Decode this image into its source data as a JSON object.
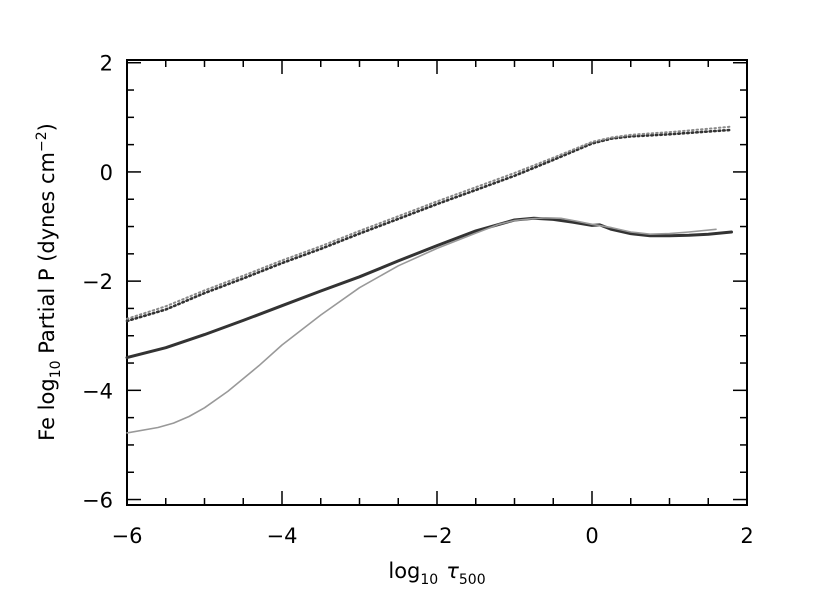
{
  "chart_data": {
    "type": "line",
    "title": "",
    "xlabel": {
      "prefix": "log",
      "sub": "10",
      "symbol": "τ",
      "symbol_sub": "500"
    },
    "ylabel": {
      "prefix": "Fe log",
      "sub": "10",
      "mid": " Partial P (dynes cm",
      "sup": "−2",
      "suffix": ")"
    },
    "xlim": [
      -6,
      2
    ],
    "ylim": [
      -6.1,
      2.05
    ],
    "xticks": [
      -6,
      -4,
      -2,
      0,
      2
    ],
    "xtick_labels": [
      "−6",
      "−4",
      "−2",
      "0",
      "2"
    ],
    "yticks": [
      -6,
      -4,
      -2,
      0,
      2
    ],
    "ytick_labels": [
      "−6",
      "−4",
      "−2",
      "0",
      "2"
    ],
    "x_minor_step": 0.5,
    "y_minor_step": 0.5,
    "grid": false,
    "series": [
      {
        "style": "solid-thick",
        "color": "#333333",
        "x": [
          -6,
          -5.5,
          -5,
          -4.5,
          -4,
          -3.5,
          -3,
          -2.5,
          -2,
          -1.5,
          -1,
          -0.75,
          -0.5,
          -0.25,
          0,
          0.1,
          0.25,
          0.5,
          0.75,
          1,
          1.25,
          1.5,
          1.8
        ],
        "y": [
          -3.4,
          -3.22,
          -2.98,
          -2.72,
          -2.45,
          -2.18,
          -1.92,
          -1.63,
          -1.35,
          -1.08,
          -0.88,
          -0.85,
          -0.87,
          -0.92,
          -0.98,
          -0.97,
          -1.05,
          -1.13,
          -1.17,
          -1.17,
          -1.16,
          -1.14,
          -1.1
        ]
      },
      {
        "style": "solid-thin",
        "color": "#999999",
        "x": [
          -6,
          -5.6,
          -5.4,
          -5.2,
          -5,
          -4.7,
          -4.3,
          -4,
          -3.5,
          -3,
          -2.5,
          -2,
          -1.5,
          -1.2,
          -1,
          -0.8,
          -0.6,
          -0.4,
          -0.2,
          0,
          0.25,
          0.5,
          0.75,
          1,
          1.25,
          1.6
        ],
        "y": [
          -4.78,
          -4.68,
          -4.6,
          -4.48,
          -4.32,
          -4.02,
          -3.55,
          -3.17,
          -2.62,
          -2.12,
          -1.72,
          -1.4,
          -1.12,
          -0.96,
          -0.89,
          -0.86,
          -0.84,
          -0.85,
          -0.9,
          -0.96,
          -1.02,
          -1.1,
          -1.14,
          -1.13,
          -1.1,
          -1.05
        ]
      },
      {
        "style": "dotted-dark",
        "color": "#333333",
        "x": [
          -6,
          -5.5,
          -5,
          -4.5,
          -4,
          -3.5,
          -3,
          -2.5,
          -2,
          -1.5,
          -1,
          -0.5,
          0,
          0.25,
          0.5,
          1,
          1.5,
          1.8
        ],
        "y": [
          -2.73,
          -2.52,
          -2.22,
          -1.95,
          -1.67,
          -1.41,
          -1.13,
          -0.86,
          -0.59,
          -0.33,
          -0.07,
          0.22,
          0.52,
          0.61,
          0.65,
          0.69,
          0.74,
          0.77
        ]
      },
      {
        "style": "dotted-light",
        "color": "#8a8a8a",
        "x": [
          -6,
          -5.5,
          -5,
          -4.5,
          -4,
          -3.5,
          -3,
          -2.5,
          -2,
          -1.5,
          -1,
          -0.5,
          0,
          0.25,
          0.5,
          1,
          1.5,
          1.8
        ],
        "y": [
          -2.69,
          -2.46,
          -2.17,
          -1.9,
          -1.62,
          -1.36,
          -1.08,
          -0.81,
          -0.54,
          -0.28,
          -0.02,
          0.26,
          0.55,
          0.63,
          0.68,
          0.73,
          0.79,
          0.83
        ]
      }
    ]
  }
}
